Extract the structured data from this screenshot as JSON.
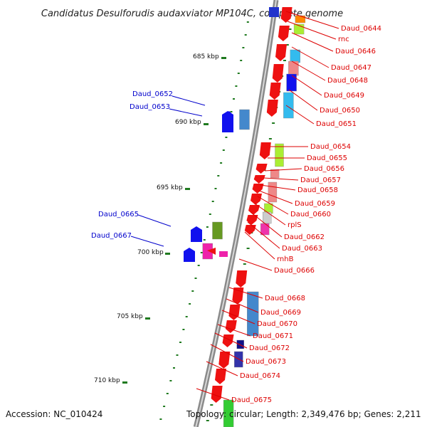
{
  "title": "Candidatus Desulforudis audaxviator MP104C, complete genome",
  "accession": "Accession: NC_010424",
  "topology": "Topology: circular; Length: 2,349,476 bp; Genes: 2,211",
  "colors": {
    "forward_label": "#0000cc",
    "reverse_label": "#dd0000",
    "backbone": "#888888",
    "tick": "#1f7a1f"
  },
  "scale_labels": [
    "685 kbp",
    "690 kbp",
    "695 kbp",
    "700 kbp",
    "705 kbp",
    "710 kbp"
  ],
  "forward_labels": [
    "Daud_0652",
    "Daud_0653",
    "Daud_0665",
    "Daud_0667"
  ],
  "reverse_labels": [
    "Daud_0644",
    "rnc",
    "Daud_0646",
    "Daud_0647",
    "Daud_0648",
    "Daud_0649",
    "Daud_0650",
    "Daud_0651",
    "Daud_0654",
    "Daud_0655",
    "Daud_0656",
    "Daud_0657",
    "Daud_0658",
    "Daud_0659",
    "Daud_0660",
    "rplS",
    "Daud_0662",
    "Daud_0663",
    "rnhB",
    "Daud_0666",
    "Daud_0668",
    "Daud_0669",
    "Daud_0670",
    "Daud_0671",
    "Daud_0672",
    "Daud_0673",
    "Daud_0674",
    "Daud_0675"
  ]
}
